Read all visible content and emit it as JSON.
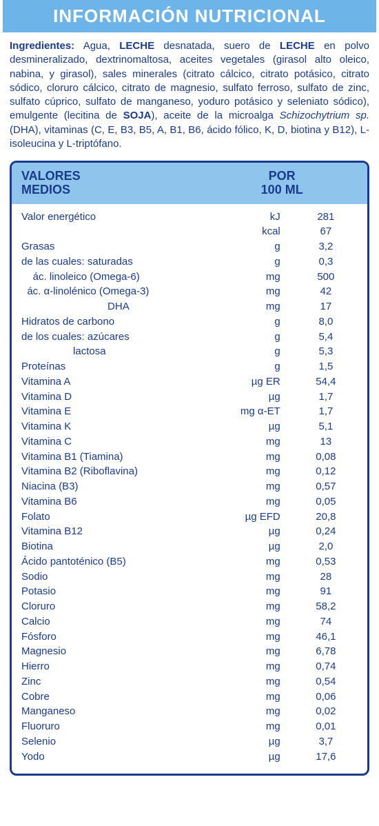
{
  "title": "INFORMACIÓN NUTRICIONAL",
  "ingredients_label": "Ingredientes:",
  "ingredients_html": "Agua, <strong>LECHE</strong> desnatada, suero de <strong>LECHE</strong> en polvo desmineralizado, dextrinomaltosa, aceites vegetales (girasol alto oleico, nabina, y girasol), sales minerales (citrato cálcico, citrato potásico, citrato sódico, cloruro cálcico, citrato de magnesio, sulfato ferroso, sulfato de zinc, sulfato cúprico, sulfato de manganeso, yoduro potásico y seleniato sódico), emulgente (lecitina de <strong>SOJA</strong>), aceite de la microalga <em>Schizochytrium sp.</em>(DHA), vitaminas (C, E, B3, B5, A, B1, B6, ácido fólico, K, D, biotina y B12), L-isoleucina y L-triptófano.",
  "header": {
    "left1": "VALORES",
    "left2": "MEDIOS",
    "right1": "POR",
    "right2": "100 ML"
  },
  "rows": [
    {
      "name": "Valor energético",
      "unit": "kJ",
      "val": "281"
    },
    {
      "name": "",
      "unit": "kcal",
      "val": "67"
    },
    {
      "name": "Grasas",
      "unit": "g",
      "val": "3,2"
    },
    {
      "name": "de las cuales: saturadas",
      "unit": "g",
      "val": "0,3"
    },
    {
      "name": "    ác. linoleico (Omega-6)",
      "unit": "mg",
      "val": "500"
    },
    {
      "name": "  ác. α-linolénico (Omega-3)",
      "unit": "mg",
      "val": "42"
    },
    {
      "name": "                              DHA",
      "unit": "mg",
      "val": "17"
    },
    {
      "name": "Hidratos de carbono",
      "unit": "g",
      "val": "8,0"
    },
    {
      "name": "de los cuales: azúcares",
      "unit": "g",
      "val": "5,4"
    },
    {
      "name": "                  lactosa",
      "unit": "g",
      "val": "5,3"
    },
    {
      "name": "Proteínas",
      "unit": "g",
      "val": "1,5"
    },
    {
      "name": "Vitamina A",
      "unit": "µg ER",
      "val": "54,4"
    },
    {
      "name": "Vitamina D",
      "unit": "µg",
      "val": "1,7"
    },
    {
      "name": "Vitamina E",
      "unit": "mg α-ET",
      "val": "1,7"
    },
    {
      "name": "Vitamina K",
      "unit": "µg",
      "val": "5,1"
    },
    {
      "name": "Vitamina C",
      "unit": "mg",
      "val": "13"
    },
    {
      "name": "Vitamina B1 (Tiamina)",
      "unit": "mg",
      "val": "0,08"
    },
    {
      "name": "Vitamina B2 (Riboflavina)",
      "unit": "mg",
      "val": "0,12"
    },
    {
      "name": "Niacina (B3)",
      "unit": "mg",
      "val": "0,57"
    },
    {
      "name": "Vitamina B6",
      "unit": "mg",
      "val": "0,05"
    },
    {
      "name": "Folato",
      "unit": "µg EFD",
      "val": "20,8"
    },
    {
      "name": "Vitamina B12",
      "unit": "µg",
      "val": "0,24"
    },
    {
      "name": "Biotina",
      "unit": "µg",
      "val": "2,0"
    },
    {
      "name": "Ácido pantoténico (B5)",
      "unit": "mg",
      "val": "0,53"
    },
    {
      "name": "Sodio",
      "unit": "mg",
      "val": "28"
    },
    {
      "name": "Potasio",
      "unit": "mg",
      "val": "91"
    },
    {
      "name": "Cloruro",
      "unit": "mg",
      "val": "58,2"
    },
    {
      "name": "Calcio",
      "unit": "mg",
      "val": "74"
    },
    {
      "name": "Fósforo",
      "unit": "mg",
      "val": "46,1"
    },
    {
      "name": "Magnesio",
      "unit": "mg",
      "val": "6,78"
    },
    {
      "name": "Hierro",
      "unit": "mg",
      "val": "0,74"
    },
    {
      "name": "Zinc",
      "unit": "mg",
      "val": "0,54"
    },
    {
      "name": "Cobre",
      "unit": "mg",
      "val": "0,06"
    },
    {
      "name": "Manganeso",
      "unit": "mg",
      "val": "0,02"
    },
    {
      "name": "Fluoruro",
      "unit": "mg",
      "val": "0,01"
    },
    {
      "name": "Selenio",
      "unit": "µg",
      "val": "3,7"
    },
    {
      "name": "Yodo",
      "unit": "µg",
      "val": "17,6"
    }
  ],
  "colors": {
    "title_bg": "#6db5e8",
    "title_fg": "#ffffff",
    "text": "#1a3b8c",
    "header_bg": "#8fc5ec",
    "border": "#1a3b8c"
  }
}
